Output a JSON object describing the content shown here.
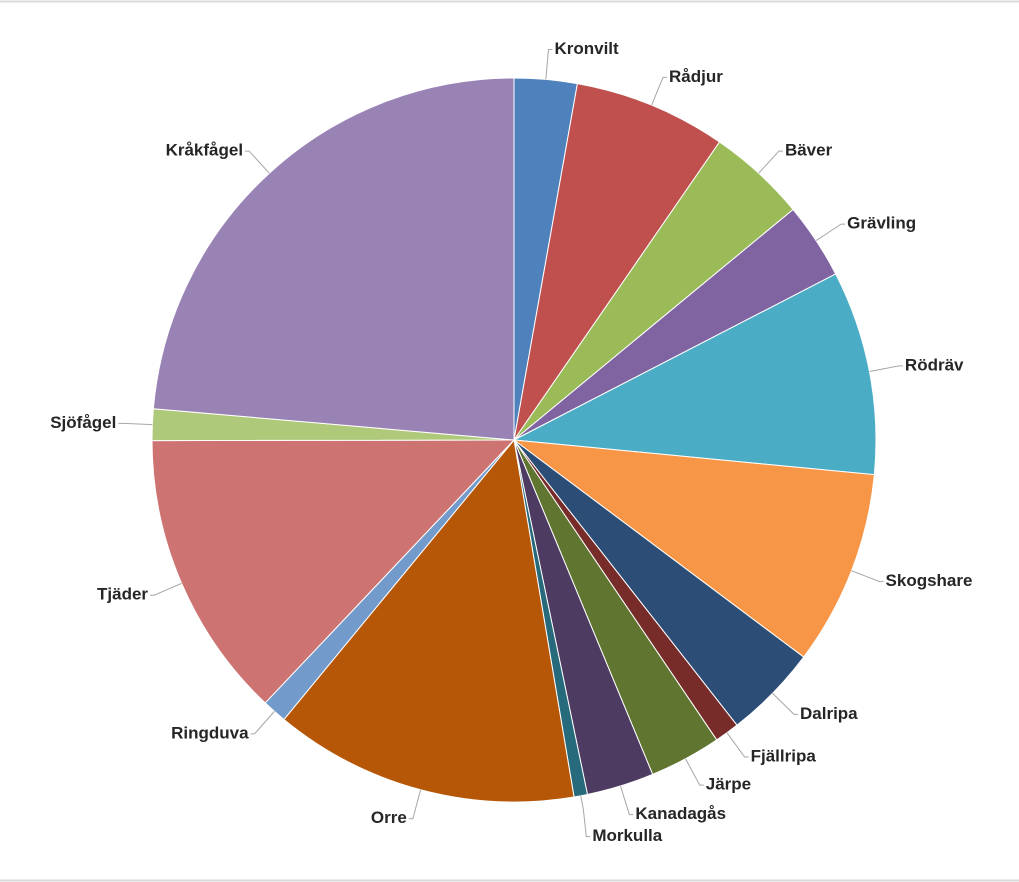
{
  "chart_data": {
    "type": "pie",
    "categories": [
      "Kronvilt",
      "Rådjur",
      "Bäver",
      "Grävling",
      "Rödräv",
      "Skogshare",
      "Dalripa",
      "Fjällripa",
      "Järpe",
      "Kanadagås",
      "Morkulla",
      "Orre",
      "Ringduva",
      "Tjäder",
      "Sjöfågel",
      "Kråkfågel"
    ],
    "values": [
      2.8,
      6.8,
      4.4,
      3.4,
      9.1,
      8.7,
      4.2,
      1.1,
      3.2,
      3.0,
      0.6,
      13.6,
      1.1,
      12.9,
      1.4,
      23.6
    ],
    "colors": [
      "#4f81bd",
      "#c0504d",
      "#9bbb59",
      "#8064a2",
      "#4bacc6",
      "#f79646",
      "#2c4d75",
      "#772c2a",
      "#5f7530",
      "#4d3b62",
      "#276a7c",
      "#b65708",
      "#729aca",
      "#cd7371",
      "#afc97a",
      "#9983b5"
    ]
  }
}
